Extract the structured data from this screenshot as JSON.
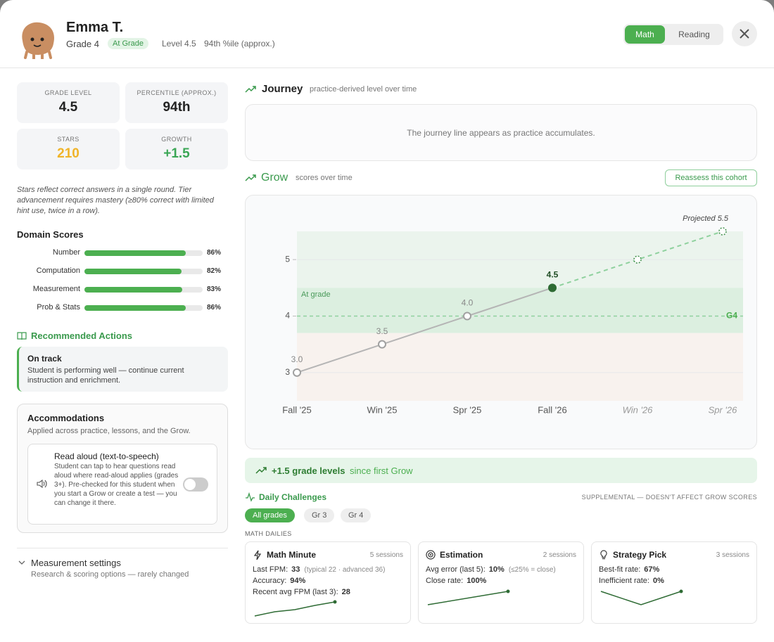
{
  "header": {
    "name": "Emma T.",
    "grade": "Grade 4",
    "status": "At Grade",
    "level": "Level 4.5",
    "percentile": "94th %ile (approx.)",
    "tabs": [
      "Math",
      "Reading"
    ],
    "active_tab": 0
  },
  "stats": [
    {
      "label": "GRADE LEVEL",
      "value": "4.5"
    },
    {
      "label": "PERCENTILE (APPROX.)",
      "value": "94th"
    },
    {
      "label": "STARS",
      "value": "210"
    },
    {
      "label": "GROWTH",
      "value": "+1.5"
    }
  ],
  "note": "Stars reflect correct answers in a single round. Tier advancement requires mastery (≥80% correct with limited hint use, twice in a row).",
  "domain_scores": {
    "title": "Domain Scores",
    "categories": [
      "Number",
      "Computation",
      "Measurement",
      "Prob & Stats"
    ],
    "values": [
      86,
      82,
      83,
      86
    ],
    "value_labels": [
      "86%",
      "82%",
      "83%",
      "86%"
    ],
    "xlim": [
      0,
      100
    ]
  },
  "recommended": {
    "title": "Recommended Actions",
    "card_title": "On track",
    "card_text": "Student is performing well — continue current instruction and enrichment."
  },
  "accommodations": {
    "title": "Accommodations",
    "subtitle": "Applied across practice, lessons, and the Grow.",
    "item_title": "Read aloud (text-to-speech)",
    "item_text": "Student can tap to hear questions read aloud where read-aloud applies (grades 3+). Pre-checked for this student when you start a Grow or create a test — you can change it there.",
    "enabled": false
  },
  "measurement": {
    "title": "Measurement settings",
    "subtitle": "Research & scoring options — rarely changed"
  },
  "journey": {
    "title": "Journey",
    "subtitle": "practice-derived level over time",
    "empty": "The journey line appears as practice accumulates."
  },
  "grow": {
    "title": "Grow",
    "subtitle": "scores over time",
    "button": "Reassess this cohort"
  },
  "chart_data": {
    "type": "line",
    "categories": [
      "Fall '25",
      "Win '25",
      "Spr '25",
      "Fall '26",
      "Win '26",
      "Spr '26"
    ],
    "series": [
      {
        "color": "#b5b5b5",
        "values": [
          3.0,
          3.5,
          4.0,
          4.5,
          null,
          null
        ],
        "value_labels": [
          "3.0",
          "3.5",
          "4.0",
          "4.5",
          null,
          null
        ]
      },
      {
        "color": "#8fd19e",
        "dashed": true,
        "values": [
          null,
          null,
          null,
          4.5,
          5.0,
          5.5
        ]
      }
    ],
    "ylim": [
      2.5,
      5.5
    ],
    "yticks": [
      3,
      4,
      5
    ],
    "grid": true,
    "band": {
      "label": "At grade",
      "range": [
        3.7,
        4.5
      ]
    },
    "reference": {
      "value": 4,
      "label": "G4"
    },
    "annotation": "Projected 5.5"
  },
  "growth_banner": {
    "value": "+1.5 grade levels",
    "text": "since first Grow"
  },
  "daily": {
    "title": "Daily Challenges",
    "note": "SUPPLEMENTAL — DOESN'T AFFECT GROW SCORES",
    "filters": [
      "All grades",
      "Gr 3",
      "Gr 4"
    ],
    "active_filter": 0,
    "section": "MATH DAILIES",
    "cards": [
      {
        "title": "Math Minute",
        "sessions": "5 sessions",
        "rows": [
          {
            "label": "Last FPM:",
            "value": "33",
            "extra": "(typical 22 · advanced 36)"
          },
          {
            "label": "Accuracy:",
            "value": "94%"
          },
          {
            "label": "Recent avg FPM (last 3):",
            "value": "28"
          }
        ],
        "trend": [
          0,
          6,
          9,
          15,
          20
        ]
      },
      {
        "title": "Estimation",
        "sessions": "2 sessions",
        "rows": [
          {
            "label": "Avg error (last 5):",
            "value": "10%",
            "extra": "(≤25% = close)"
          },
          {
            "label": "Close rate:",
            "value": "100%"
          }
        ],
        "trend": [
          0,
          19
        ]
      },
      {
        "title": "Strategy Pick",
        "sessions": "3 sessions",
        "rows": [
          {
            "label": "Best-fit rate:",
            "value": "67%"
          },
          {
            "label": "Inefficient rate:",
            "value": "0%"
          }
        ],
        "trend": [
          19,
          0,
          19
        ]
      }
    ]
  }
}
